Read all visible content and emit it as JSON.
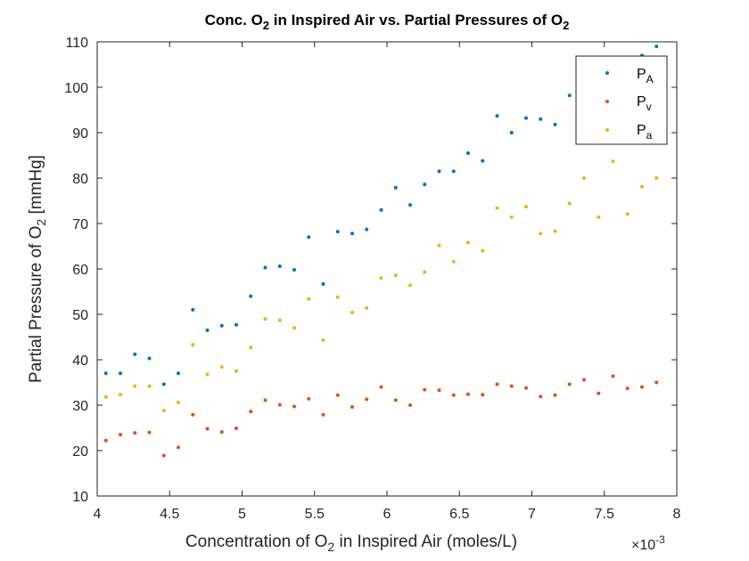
{
  "colors": {
    "P_A": "#0072BD",
    "P_v": "#D95319",
    "P_a": "#EDB120",
    "axis": "#262626"
  },
  "chart_data": {
    "type": "scatter",
    "title": {
      "prefix": "Conc. O",
      "sub1": "2",
      "middle": " in Inspired Air vs. Partial Pressures of O",
      "sub2": "2"
    },
    "xlabel": {
      "prefix": "Concentration of O",
      "sub": "2",
      "suffix": " in Inspired Air (moles/L)"
    },
    "ylabel": {
      "prefix": "Partial Pressure of O",
      "sub": "2",
      "suffix": " [mmHg]"
    },
    "x_multiplier": {
      "base": "×10",
      "exponent": "-3"
    },
    "xlim": [
      4,
      8
    ],
    "ylim": [
      10,
      110
    ],
    "xticks": [
      "4",
      "4.5",
      "5",
      "5.5",
      "6",
      "6.5",
      "7",
      "7.5",
      "8"
    ],
    "yticks": [
      "10",
      "20",
      "30",
      "40",
      "50",
      "60",
      "70",
      "80",
      "90",
      "100",
      "110"
    ],
    "grid": false,
    "legend_location": "top-right",
    "x": [
      4.06,
      4.16,
      4.26,
      4.36,
      4.46,
      4.56,
      4.66,
      4.76,
      4.86,
      4.96,
      5.06,
      5.16,
      5.26,
      5.36,
      5.46,
      5.56,
      5.66,
      5.76,
      5.86,
      5.96,
      6.06,
      6.16,
      6.26,
      6.36,
      6.46,
      6.56,
      6.66,
      6.76,
      6.86,
      6.96,
      7.06,
      7.16,
      7.26,
      7.36,
      7.46,
      7.56,
      7.66,
      7.76,
      7.86
    ],
    "series": [
      {
        "name": "P",
        "sub": "A",
        "color_key": "P_A",
        "values": [
          37,
          37,
          41.2,
          40.3,
          34.6,
          37,
          51,
          46.5,
          47.5,
          47.7,
          54,
          60.3,
          60.6,
          59.8,
          67,
          56.7,
          68.2,
          67.8,
          68.7,
          73,
          77.9,
          74.1,
          78.6,
          81.5,
          81.5,
          85.5,
          83.8,
          93.7,
          90,
          93.2,
          93,
          91.8,
          98.2,
          97,
          99,
          100.5,
          103,
          107,
          109
        ]
      },
      {
        "name": "P",
        "sub": "v",
        "color_key": "P_v",
        "values": [
          22.2,
          23.5,
          23.9,
          24,
          18.9,
          20.7,
          27.9,
          24.8,
          24.1,
          24.9,
          28.6,
          31.1,
          30.1,
          29.7,
          31.4,
          27.9,
          32.2,
          29.6,
          31.3,
          34,
          31.1,
          30,
          33.4,
          33.3,
          32.2,
          32.4,
          32.3,
          34.6,
          34.2,
          33.8,
          31.9,
          32.2,
          34.6,
          35.6,
          32.6,
          36.4,
          33.7,
          34,
          35
        ]
      },
      {
        "name": "P",
        "sub": "a",
        "color_key": "P_a",
        "values": [
          31.8,
          32.3,
          34.2,
          34.2,
          28.8,
          30.6,
          43.3,
          36.8,
          38.4,
          37.5,
          42.7,
          49,
          48.7,
          47,
          53.4,
          44.3,
          53.8,
          50.4,
          51.4,
          58,
          58.6,
          56.4,
          59.3,
          65.2,
          61.6,
          65.8,
          64,
          73.4,
          71.4,
          73.7,
          67.8,
          68.3,
          74.4,
          80,
          71.4,
          83.7,
          72.1,
          78.1,
          80
        ]
      }
    ]
  }
}
